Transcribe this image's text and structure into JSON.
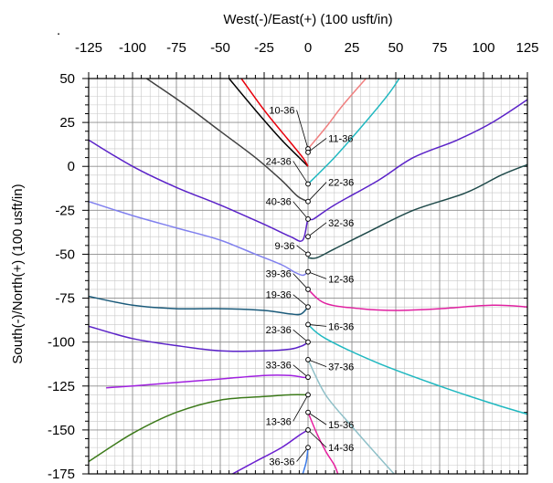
{
  "chart_data": {
    "type": "line",
    "corner_mark": ".",
    "xlabel": "West(-)/East(+) (100 usft/in)",
    "ylabel": "South(-)/North(+) (100 usft/in)",
    "xlim": [
      -125,
      125
    ],
    "ylim": [
      -175,
      50
    ],
    "x_ticks": [
      -125,
      -100,
      -75,
      -50,
      -25,
      0,
      25,
      50,
      75,
      100,
      125
    ],
    "y_ticks": [
      50,
      25,
      0,
      -25,
      -50,
      -75,
      -100,
      -125,
      -150,
      -175
    ],
    "grid": true,
    "series": [
      {
        "color": "#404040",
        "points": [
          [
            -92,
            50
          ],
          [
            -70,
            35
          ],
          [
            -50,
            20
          ],
          [
            -30,
            5
          ],
          [
            -15,
            -8
          ],
          [
            -6,
            -17
          ],
          [
            0,
            -20
          ]
        ]
      },
      {
        "color": "#000000",
        "points": [
          [
            -45,
            50
          ],
          [
            -30,
            32
          ],
          [
            -15,
            15
          ],
          [
            -5,
            5
          ],
          [
            0,
            0
          ]
        ]
      },
      {
        "color": "#e8000b",
        "points": [
          [
            -38,
            50
          ],
          [
            -25,
            32
          ],
          [
            -12,
            16
          ],
          [
            -3,
            5
          ],
          [
            0,
            0
          ]
        ]
      },
      {
        "color": "#f08080",
        "points": [
          [
            0,
            10
          ],
          [
            10,
            22
          ],
          [
            20,
            35
          ],
          [
            33,
            50
          ]
        ]
      },
      {
        "color": "#20b8c0",
        "points": [
          [
            0,
            -10
          ],
          [
            15,
            5
          ],
          [
            30,
            22
          ],
          [
            45,
            40
          ],
          [
            52,
            50
          ]
        ]
      },
      {
        "color": "#5a22c8",
        "points": [
          [
            -125,
            15
          ],
          [
            -100,
            0
          ],
          [
            -75,
            -12
          ],
          [
            -50,
            -22
          ],
          [
            -25,
            -33
          ],
          [
            -10,
            -40
          ],
          [
            -3,
            -42
          ],
          [
            0,
            -30
          ],
          [
            3,
            -30
          ],
          [
            15,
            -22
          ],
          [
            40,
            -8
          ],
          [
            60,
            5
          ],
          [
            85,
            15
          ],
          [
            105,
            25
          ],
          [
            125,
            38
          ]
        ]
      },
      {
        "color": "#1f4a4a",
        "points": [
          [
            0,
            -52
          ],
          [
            5,
            -52
          ],
          [
            15,
            -47
          ],
          [
            35,
            -37
          ],
          [
            60,
            -25
          ],
          [
            90,
            -15
          ],
          [
            110,
            -5
          ],
          [
            125,
            1
          ]
        ]
      },
      {
        "color": "#8080ee",
        "points": [
          [
            -125,
            -20
          ],
          [
            -100,
            -28
          ],
          [
            -75,
            -35
          ],
          [
            -50,
            -42
          ],
          [
            -30,
            -50
          ],
          [
            -15,
            -56
          ],
          [
            -8,
            -60
          ],
          [
            -3,
            -62
          ],
          [
            0,
            -60
          ]
        ]
      },
      {
        "color": "#e020a0",
        "points": [
          [
            0,
            -70
          ],
          [
            10,
            -78
          ],
          [
            30,
            -81
          ],
          [
            50,
            -82
          ],
          [
            75,
            -81
          ],
          [
            105,
            -79
          ],
          [
            125,
            -80
          ]
        ]
      },
      {
        "color": "#1a5a7a",
        "points": [
          [
            -125,
            -74
          ],
          [
            -100,
            -79
          ],
          [
            -75,
            -81
          ],
          [
            -50,
            -81
          ],
          [
            -25,
            -82
          ],
          [
            -10,
            -84
          ],
          [
            -4,
            -84
          ],
          [
            0,
            -80
          ]
        ]
      },
      {
        "color": "#20b8c0",
        "points": [
          [
            0,
            -90
          ],
          [
            10,
            -98
          ],
          [
            40,
            -112
          ],
          [
            75,
            -125
          ],
          [
            105,
            -135
          ],
          [
            125,
            -141
          ]
        ]
      },
      {
        "color": "#5a22c8",
        "points": [
          [
            -125,
            -91
          ],
          [
            -100,
            -98
          ],
          [
            -75,
            -102
          ],
          [
            -50,
            -105
          ],
          [
            -25,
            -105
          ],
          [
            -10,
            -104
          ],
          [
            -3,
            -102
          ],
          [
            0,
            -100
          ]
        ]
      },
      {
        "color": "#a020e0",
        "points": [
          [
            -115,
            -126
          ],
          [
            -100,
            -125
          ],
          [
            -75,
            -123
          ],
          [
            -50,
            -121
          ],
          [
            -25,
            -119
          ],
          [
            -10,
            -119
          ],
          [
            -3,
            -120
          ],
          [
            0,
            -120
          ]
        ]
      },
      {
        "color": "#8fc0c8",
        "points": [
          [
            0,
            -110
          ],
          [
            10,
            -130
          ],
          [
            25,
            -148
          ],
          [
            40,
            -165
          ],
          [
            49,
            -175
          ]
        ]
      },
      {
        "color": "#3c7a1a",
        "points": [
          [
            -125,
            -168
          ],
          [
            -100,
            -152
          ],
          [
            -75,
            -140
          ],
          [
            -50,
            -133
          ],
          [
            -25,
            -131
          ],
          [
            -10,
            -130
          ],
          [
            0,
            -130
          ]
        ]
      },
      {
        "color": "#6a1ed0",
        "points": [
          [
            -43,
            -175
          ],
          [
            -30,
            -168
          ],
          [
            -15,
            -160
          ],
          [
            -5,
            -153
          ],
          [
            0,
            -150
          ]
        ]
      },
      {
        "color": "#e820a0",
        "points": [
          [
            0,
            -140
          ],
          [
            5,
            -152
          ],
          [
            10,
            -162
          ],
          [
            15,
            -170
          ],
          [
            17,
            -175
          ]
        ]
      },
      {
        "color": "#3a7ae8",
        "points": [
          [
            -3,
            -175
          ],
          [
            -1,
            -168
          ],
          [
            0,
            -160
          ]
        ]
      }
    ],
    "annotations": [
      {
        "label": "10-36",
        "x": 0,
        "y": 10,
        "lx": -7,
        "ly": 32
      },
      {
        "label": "11-36",
        "x": 0,
        "y": 8,
        "lx": 11,
        "ly": 16
      },
      {
        "label": "24-36",
        "x": 0,
        "y": -10,
        "lx": -9,
        "ly": 3
      },
      {
        "label": "22-36",
        "x": 0,
        "y": -20,
        "lx": 11,
        "ly": -9
      },
      {
        "label": "40-36",
        "x": 0,
        "y": -30,
        "lx": -9,
        "ly": -20
      },
      {
        "label": "32-36",
        "x": 0,
        "y": -40,
        "lx": 11,
        "ly": -32
      },
      {
        "label": "9-36",
        "x": 0,
        "y": -50,
        "lx": -7,
        "ly": -45
      },
      {
        "label": "12-36",
        "x": 0,
        "y": -60,
        "lx": 11,
        "ly": -64
      },
      {
        "label": "39-36",
        "x": 0,
        "y": -70,
        "lx": -9,
        "ly": -61
      },
      {
        "label": "19-36",
        "x": 0,
        "y": -80,
        "lx": -9,
        "ly": -73
      },
      {
        "label": "16-36",
        "x": 0,
        "y": -90,
        "lx": 11,
        "ly": -91
      },
      {
        "label": "23-36",
        "x": 0,
        "y": -100,
        "lx": -9,
        "ly": -93
      },
      {
        "label": "37-36",
        "x": 0,
        "y": -110,
        "lx": 11,
        "ly": -114
      },
      {
        "label": "33-36",
        "x": 0,
        "y": -120,
        "lx": -9,
        "ly": -113
      },
      {
        "label": "13-36",
        "x": 0,
        "y": -130,
        "lx": -9,
        "ly": -145
      },
      {
        "label": "15-36",
        "x": 0,
        "y": -140,
        "lx": 11,
        "ly": -147
      },
      {
        "label": "14-36",
        "x": 0,
        "y": -150,
        "lx": 11,
        "ly": -160
      },
      {
        "label": "36-36",
        "x": 0,
        "y": -160,
        "lx": -7,
        "ly": -168
      }
    ]
  }
}
